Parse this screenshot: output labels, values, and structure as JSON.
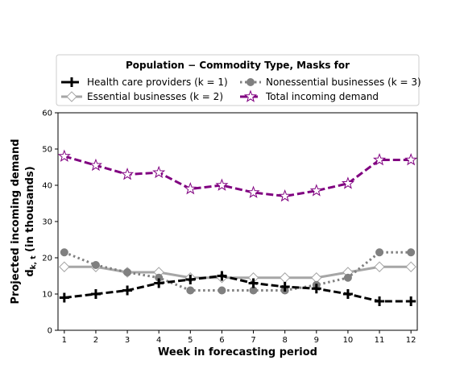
{
  "chart_data": {
    "type": "line",
    "xlabel": "Week in forecasting period",
    "ylabel_line1": "Projected incoming demand",
    "ylabel_line2": "d",
    "ylabel_sub": "k, t",
    "ylabel_suffix": " (in thousands)",
    "x": [
      1,
      2,
      3,
      4,
      5,
      6,
      7,
      8,
      9,
      10,
      11,
      12
    ],
    "xlim": [
      0.8,
      12.2
    ],
    "ylim": [
      0,
      60
    ],
    "yticks": [
      0,
      10,
      20,
      30,
      40,
      50,
      60
    ],
    "grid": false,
    "legend": {
      "title": "Population − Commodity Type,  Masks for",
      "placement": "top, above plot, 2 columns"
    },
    "series": [
      {
        "name": "Health care providers (k = 1)",
        "color": "#000000",
        "style": "dashed",
        "marker": "plus",
        "values": [
          9,
          10,
          11,
          13,
          14,
          15,
          13,
          12,
          11.5,
          10,
          8,
          8
        ]
      },
      {
        "name": "Essential businesses (k = 2)",
        "color": "#a6a6a6",
        "style": "solid",
        "marker": "diamond",
        "values": [
          17.5,
          17.5,
          16,
          16,
          14.5,
          14.5,
          14.5,
          14.5,
          14.5,
          16,
          17.5,
          17.5
        ]
      },
      {
        "name": "Nonessential businesses (k = 3)",
        "color": "#808080",
        "style": "dotted",
        "marker": "circle",
        "values": [
          21.5,
          18,
          16,
          14.5,
          11,
          11,
          11,
          11,
          12.5,
          14.5,
          21.5,
          21.5
        ]
      },
      {
        "name": "Total incoming demand",
        "color": "#800080",
        "style": "dashed",
        "marker": "star",
        "values": [
          48,
          45.5,
          43,
          43.5,
          39,
          40,
          38,
          37,
          38.5,
          40.5,
          47,
          47
        ]
      }
    ]
  }
}
